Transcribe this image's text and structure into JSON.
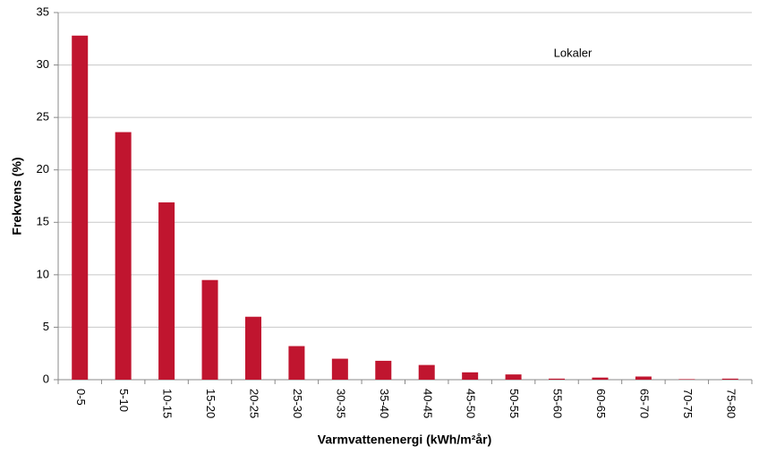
{
  "chart_data": {
    "type": "bar",
    "annotation": "Lokaler",
    "x_label": "Varmvattenenergi (kWh/m²år)",
    "y_label": "Frekvens (%)",
    "categories": [
      "0-5",
      "5-10",
      "10-15",
      "15-20",
      "20-25",
      "25-30",
      "30-35",
      "35-40",
      "40-45",
      "45-50",
      "50-55",
      "55-60",
      "60-65",
      "65-70",
      "70-75",
      "75-80"
    ],
    "values": [
      32.8,
      23.6,
      16.9,
      9.5,
      6.0,
      3.2,
      2.0,
      1.8,
      1.4,
      0.7,
      0.5,
      0.1,
      0.2,
      0.3,
      0.05,
      0.1
    ],
    "color": "#c0152f",
    "ylim": [
      0,
      35
    ],
    "yticks": [
      0,
      5,
      10,
      15,
      20,
      25,
      30,
      35
    ],
    "grid": true
  }
}
